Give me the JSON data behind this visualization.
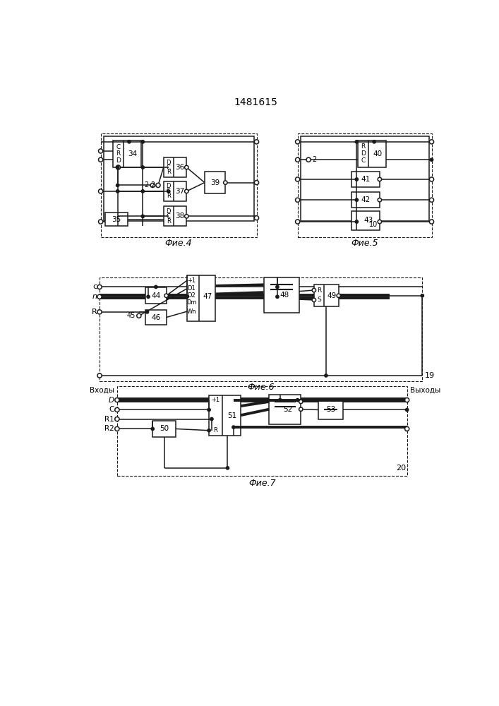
{
  "title": "1481615",
  "fig4_caption": "Фие.4",
  "fig5_caption": "Фие.5",
  "fig6_caption": "Фие.6",
  "fig7_caption": "Фие.7",
  "bg_color": "#ffffff",
  "lc": "#1a1a1a"
}
